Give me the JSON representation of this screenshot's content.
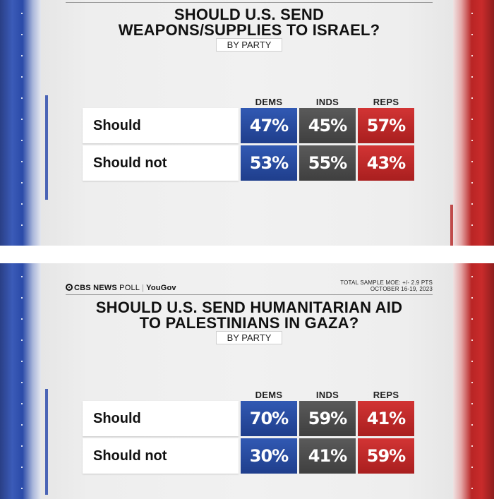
{
  "chart_data": [
    {
      "type": "table",
      "title_lines": [
        "SHOULD U.S. SEND",
        "WEAPONS/SUPPLIES TO ISRAEL?"
      ],
      "subtitle": "BY PARTY",
      "columns": [
        "DEMS",
        "INDS",
        "REPS"
      ],
      "rows": [
        {
          "label": "Should",
          "values": [
            "47%",
            "45%",
            "57%"
          ]
        },
        {
          "label": "Should not",
          "values": [
            "53%",
            "55%",
            "43%"
          ]
        }
      ]
    },
    {
      "type": "table",
      "title_lines": [
        "SHOULD U.S. SEND HUMANITARIAN AID",
        "TO PALESTINIANS IN GAZA?"
      ],
      "subtitle": "BY PARTY",
      "columns": [
        "DEMS",
        "INDS",
        "REPS"
      ],
      "rows": [
        {
          "label": "Should",
          "values": [
            "70%",
            "59%",
            "41%"
          ]
        },
        {
          "label": "Should not",
          "values": [
            "30%",
            "41%",
            "59%"
          ]
        }
      ]
    }
  ],
  "source": {
    "cbs": "CBS NEWS",
    "poll": "POLL",
    "yougov": "YouGov"
  },
  "moe": {
    "line1": "TOTAL SAMPLE MOE: +/- 2.9 PTS",
    "line2": "OCTOBER 16-19, 2023"
  },
  "colors": {
    "dems": "#2a4ea6",
    "inds": "#4d4d4d",
    "reps": "#c62a2a"
  }
}
